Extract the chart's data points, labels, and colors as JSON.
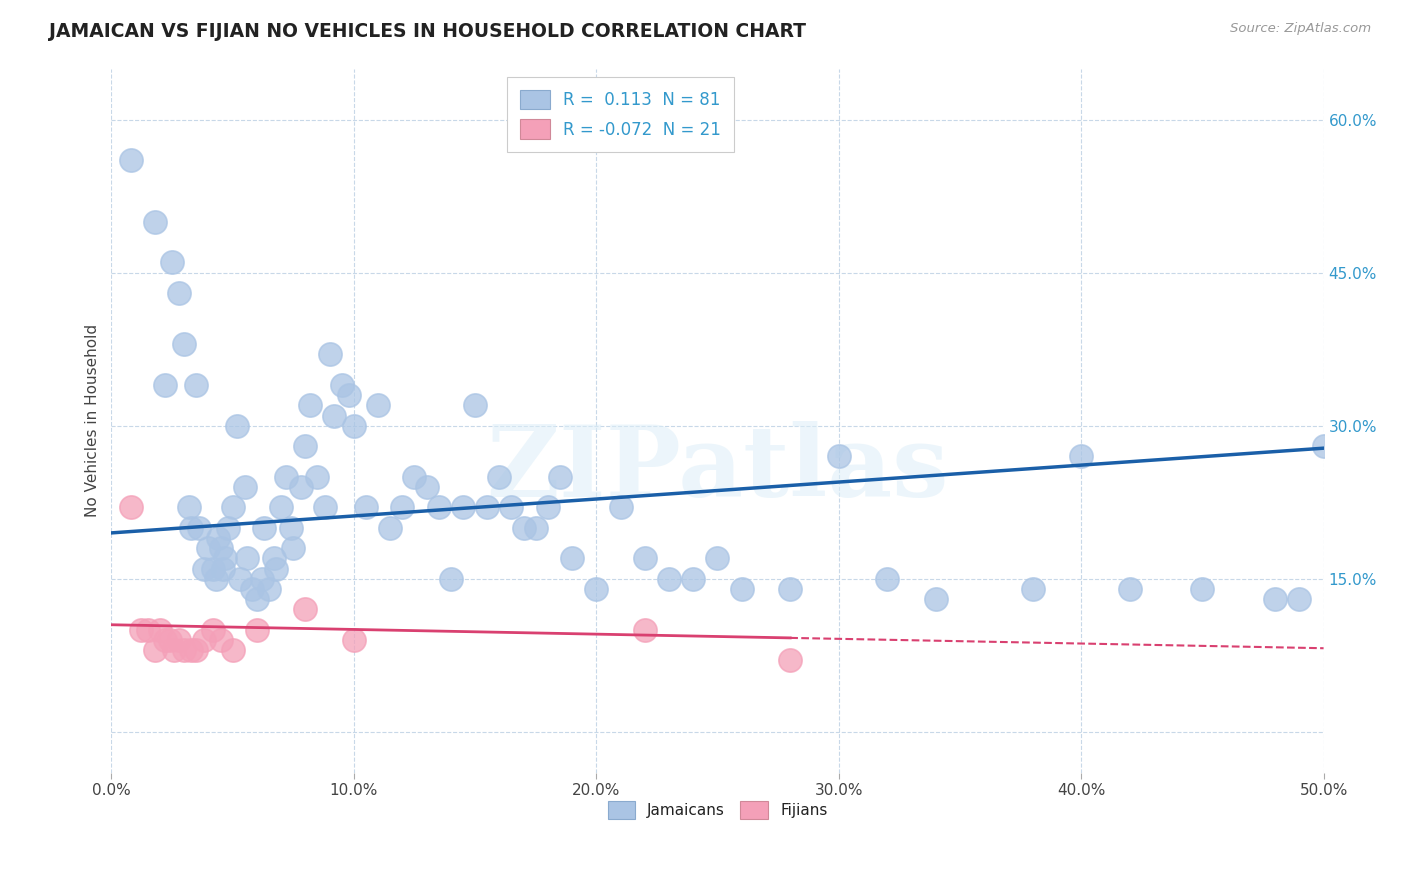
{
  "title": "JAMAICAN VS FIJIAN NO VEHICLES IN HOUSEHOLD CORRELATION CHART",
  "source": "Source: ZipAtlas.com",
  "ylabel": "No Vehicles in Household",
  "xlim": [
    0.0,
    0.5
  ],
  "ylim": [
    -0.04,
    0.65
  ],
  "x_ticks": [
    0.0,
    0.1,
    0.2,
    0.3,
    0.4,
    0.5
  ],
  "x_tick_labels": [
    "0.0%",
    "10.0%",
    "20.0%",
    "30.0%",
    "40.0%",
    "50.0%"
  ],
  "y_ticks": [
    0.0,
    0.15,
    0.3,
    0.45,
    0.6
  ],
  "y_tick_labels": [
    "",
    "15.0%",
    "30.0%",
    "45.0%",
    "60.0%"
  ],
  "jamaican_color": "#aac4e4",
  "fijian_color": "#f4a0b8",
  "jamaican_line_color": "#1a5fa8",
  "fijian_line_color": "#d94070",
  "jamaican_R": 0.113,
  "jamaican_N": 81,
  "fijian_R": -0.072,
  "fijian_N": 21,
  "background_color": "#ffffff",
  "grid_color": "#c8d8e8",
  "watermark": "ZIPatlas",
  "jam_x": [
    0.008,
    0.018,
    0.022,
    0.025,
    0.028,
    0.03,
    0.032,
    0.033,
    0.035,
    0.036,
    0.038,
    0.04,
    0.042,
    0.043,
    0.044,
    0.045,
    0.046,
    0.047,
    0.048,
    0.05,
    0.052,
    0.053,
    0.055,
    0.056,
    0.058,
    0.06,
    0.062,
    0.063,
    0.065,
    0.067,
    0.068,
    0.07,
    0.072,
    0.074,
    0.075,
    0.078,
    0.08,
    0.082,
    0.085,
    0.088,
    0.09,
    0.092,
    0.095,
    0.098,
    0.1,
    0.105,
    0.11,
    0.115,
    0.12,
    0.125,
    0.13,
    0.135,
    0.14,
    0.145,
    0.15,
    0.155,
    0.16,
    0.165,
    0.17,
    0.175,
    0.18,
    0.185,
    0.19,
    0.2,
    0.21,
    0.22,
    0.23,
    0.24,
    0.25,
    0.26,
    0.28,
    0.3,
    0.32,
    0.34,
    0.38,
    0.4,
    0.42,
    0.45,
    0.48,
    0.49,
    0.5
  ],
  "jam_y": [
    0.56,
    0.5,
    0.34,
    0.46,
    0.43,
    0.38,
    0.22,
    0.2,
    0.34,
    0.2,
    0.16,
    0.18,
    0.16,
    0.15,
    0.19,
    0.18,
    0.16,
    0.17,
    0.2,
    0.22,
    0.3,
    0.15,
    0.24,
    0.17,
    0.14,
    0.13,
    0.15,
    0.2,
    0.14,
    0.17,
    0.16,
    0.22,
    0.25,
    0.2,
    0.18,
    0.24,
    0.28,
    0.32,
    0.25,
    0.22,
    0.37,
    0.31,
    0.34,
    0.33,
    0.3,
    0.22,
    0.32,
    0.2,
    0.22,
    0.25,
    0.24,
    0.22,
    0.15,
    0.22,
    0.32,
    0.22,
    0.25,
    0.22,
    0.2,
    0.2,
    0.22,
    0.25,
    0.17,
    0.14,
    0.22,
    0.17,
    0.15,
    0.15,
    0.17,
    0.14,
    0.14,
    0.27,
    0.15,
    0.13,
    0.14,
    0.27,
    0.14,
    0.14,
    0.13,
    0.13,
    0.28
  ],
  "fij_x": [
    0.008,
    0.012,
    0.015,
    0.018,
    0.02,
    0.022,
    0.024,
    0.026,
    0.028,
    0.03,
    0.033,
    0.035,
    0.038,
    0.042,
    0.045,
    0.05,
    0.06,
    0.08,
    0.1,
    0.22,
    0.28
  ],
  "fij_y": [
    0.22,
    0.1,
    0.1,
    0.08,
    0.1,
    0.09,
    0.09,
    0.08,
    0.09,
    0.08,
    0.08,
    0.08,
    0.09,
    0.1,
    0.09,
    0.08,
    0.1,
    0.12,
    0.09,
    0.1,
    0.07
  ],
  "jam_line_x0": 0.0,
  "jam_line_x1": 0.5,
  "jam_line_y0": 0.195,
  "jam_line_y1": 0.278,
  "fij_line_solid_x0": 0.0,
  "fij_line_solid_x1": 0.28,
  "fij_line_x0": 0.0,
  "fij_line_x1": 0.5,
  "fij_line_y0": 0.105,
  "fij_line_y1": 0.082
}
